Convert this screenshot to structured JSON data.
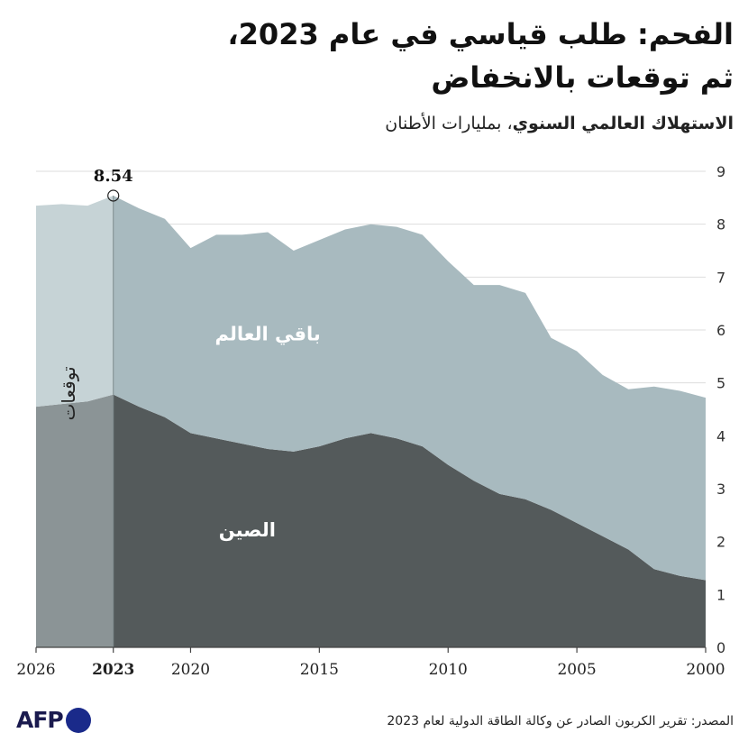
{
  "title_line1": "الفحم: طلب قياسي في عام 2023،",
  "title_line2": "ثم توقعات بالانخفاض",
  "subtitle_bold": "الاستهلاك العالمي السنوي",
  "subtitle_rest": "، بمليارات الأطنان",
  "source": "المصدر: تقرير الكربون الصادر عن وكالة الطاقة الدولية لعام 2023",
  "logo_text": "AFP",
  "colors": {
    "china": "#545a5b",
    "rest": "#a8babf",
    "china_forecast": "#8b9496",
    "rest_forecast": "#c6d3d6",
    "grid": "#dddddd",
    "axis": "#444444"
  },
  "chart_data": {
    "type": "area",
    "stacked": true,
    "x_reversed": true,
    "xlim": [
      2000,
      2026
    ],
    "ylim": [
      0,
      9
    ],
    "x_ticks": [
      {
        "value": 2026,
        "label": "2026",
        "bold": false
      },
      {
        "value": 2023,
        "label": "2023",
        "bold": true
      },
      {
        "value": 2020,
        "label": "2020",
        "bold": false
      },
      {
        "value": 2015,
        "label": "2015",
        "bold": false
      },
      {
        "value": 2010,
        "label": "2010",
        "bold": false
      },
      {
        "value": 2005,
        "label": "2005",
        "bold": false
      },
      {
        "value": 2000,
        "label": "2000",
        "bold": false
      }
    ],
    "y_ticks": [
      0,
      1,
      2,
      3,
      4,
      5,
      6,
      7,
      8,
      9
    ],
    "forecast_start": 2023,
    "forecast_label": "توقعات",
    "x": [
      2000,
      2001,
      2002,
      2003,
      2004,
      2005,
      2006,
      2007,
      2008,
      2009,
      2010,
      2011,
      2012,
      2013,
      2014,
      2015,
      2016,
      2017,
      2018,
      2019,
      2020,
      2021,
      2022,
      2023,
      2024,
      2025,
      2026
    ],
    "series": [
      {
        "name": "الصين",
        "values": [
          1.27,
          1.35,
          1.48,
          1.85,
          2.1,
          2.35,
          2.6,
          2.8,
          2.9,
          3.15,
          3.45,
          3.8,
          3.95,
          4.05,
          3.95,
          3.8,
          3.7,
          3.75,
          3.85,
          3.95,
          4.05,
          4.35,
          4.55,
          4.78,
          4.65,
          4.6,
          4.55
        ]
      },
      {
        "name": "باقي العالم",
        "values": [
          3.45,
          3.5,
          3.45,
          3.03,
          3.05,
          3.25,
          3.25,
          3.9,
          3.95,
          3.7,
          3.85,
          4.0,
          4.0,
          3.95,
          3.95,
          3.9,
          3.8,
          4.1,
          3.95,
          3.85,
          3.5,
          3.75,
          3.75,
          3.76,
          3.7,
          3.78,
          3.8
        ]
      }
    ],
    "annotation": {
      "x": 2023,
      "value": 8.54,
      "label": "8.54"
    }
  }
}
